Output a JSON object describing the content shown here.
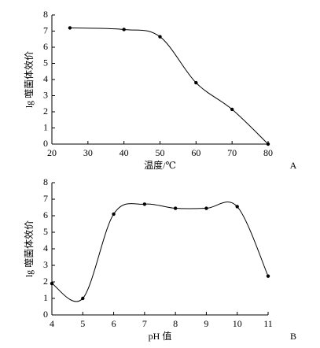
{
  "chart_data": [
    {
      "type": "line",
      "panel_label": "A",
      "x_label": "温度/℃",
      "y_label": "lg 噬菌体效价",
      "color": "#000000",
      "smooth": true,
      "x": [
        25,
        40,
        50,
        60,
        70,
        80
      ],
      "values": [
        7.2,
        7.1,
        6.65,
        3.8,
        2.15,
        0
      ],
      "xlim": [
        20,
        80
      ],
      "xticks": [
        20,
        30,
        40,
        50,
        60,
        70,
        80
      ],
      "ylim": [
        0,
        8
      ],
      "yticks": [
        0,
        1,
        2,
        3,
        4,
        5,
        6,
        7,
        8
      ]
    },
    {
      "type": "line",
      "panel_label": "B",
      "x_label": "pH 值",
      "y_label": "lg 噬菌体效价",
      "color": "#000000",
      "smooth": true,
      "x": [
        4,
        5,
        6,
        7,
        8,
        9,
        10,
        11
      ],
      "values": [
        1.9,
        1.0,
        6.1,
        6.7,
        6.45,
        6.45,
        6.55,
        2.35
      ],
      "xlim": [
        4,
        11
      ],
      "xticks": [
        4,
        5,
        6,
        7,
        8,
        9,
        10,
        11
      ],
      "ylim": [
        0,
        8
      ],
      "yticks": [
        0,
        1,
        2,
        3,
        4,
        5,
        6,
        7,
        8
      ]
    }
  ]
}
